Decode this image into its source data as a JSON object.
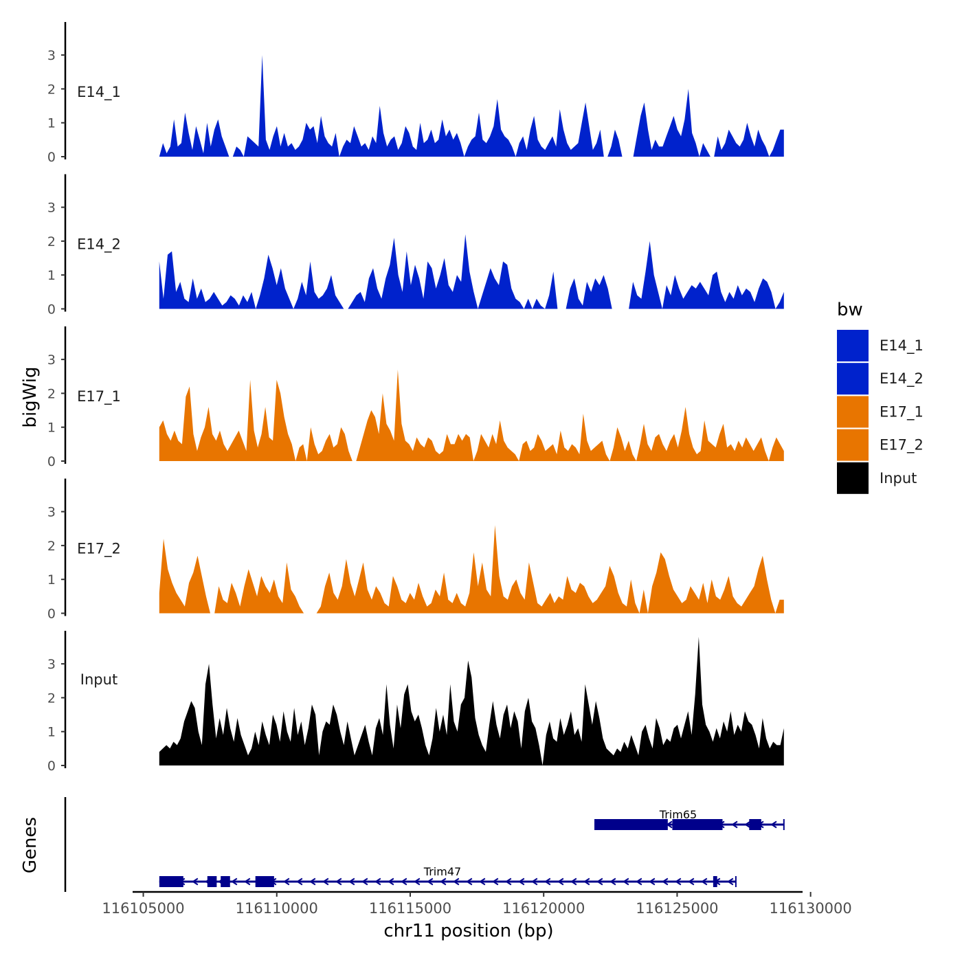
{
  "chart_data": {
    "type": "area",
    "ylabel": "bigWig",
    "xlabel": "chr11 position (bp)",
    "xlim": [
      116104600,
      116129700
    ],
    "x_ticks": [
      116105000,
      116110000,
      116115000,
      116120000,
      116125000,
      116130000
    ],
    "x_tick_labels": [
      "116105000",
      "116110000",
      "116115000",
      "116120000",
      "116125000",
      "116130000"
    ],
    "ylim": [
      0,
      4
    ],
    "y_ticks": [
      0,
      1,
      2,
      3
    ],
    "y_tick_labels": [
      "0",
      "1",
      "2",
      "3"
    ],
    "data_range": [
      116105600,
      116129000
    ],
    "tracks": [
      {
        "name": "E14_1",
        "color": "#0022CC",
        "values": [
          0,
          0.4,
          0.1,
          0.3,
          1.1,
          0.3,
          0.4,
          1.3,
          0.7,
          0.2,
          0.9,
          0.5,
          0.1,
          1.0,
          0.3,
          0.8,
          1.1,
          0.6,
          0.3,
          0,
          0,
          0.3,
          0.2,
          0,
          0.6,
          0.5,
          0.4,
          0.3,
          3.0,
          0.5,
          0.2,
          0.6,
          0.9,
          0.3,
          0.7,
          0.3,
          0.4,
          0.2,
          0.3,
          0.5,
          1.0,
          0.8,
          0.9,
          0.4,
          1.2,
          0.6,
          0.4,
          0.3,
          0.7,
          0,
          0.3,
          0.5,
          0.4,
          0.9,
          0.6,
          0.3,
          0.4,
          0.2,
          0.6,
          0.4,
          1.5,
          0.7,
          0.3,
          0.5,
          0.6,
          0.2,
          0.4,
          0.9,
          0.7,
          0.3,
          0.2,
          1.0,
          0.4,
          0.5,
          0.8,
          0.4,
          0.5,
          1.1,
          0.6,
          0.8,
          0.5,
          0.7,
          0.4,
          0,
          0.3,
          0.5,
          0.6,
          1.3,
          0.5,
          0.4,
          0.6,
          0.9,
          1.7,
          0.8,
          0.6,
          0.5,
          0.3,
          0,
          0.4,
          0.6,
          0.2,
          0.8,
          1.2,
          0.5,
          0.3,
          0.2,
          0.4,
          0.6,
          0.3,
          1.4,
          0.8,
          0.4,
          0.2,
          0.3,
          0.4,
          1.0,
          1.6,
          0.9,
          0.2,
          0.4,
          0.8,
          0,
          0,
          0.3,
          0.8,
          0.5,
          0,
          0,
          0,
          0,
          0.6,
          1.2,
          1.6,
          0.8,
          0.2,
          0.5,
          0.3,
          0.3,
          0.6,
          0.9,
          1.2,
          0.8,
          0.6,
          1.1,
          2.0,
          0.7,
          0.4,
          0,
          0.4,
          0.2,
          0,
          0,
          0.6,
          0.2,
          0.4,
          0.8,
          0.6,
          0.4,
          0.3,
          0.5,
          1.0,
          0.6,
          0.3,
          0.8,
          0.5,
          0.3,
          0,
          0.2,
          0.5,
          0.8,
          0.8
        ]
      },
      {
        "name": "E14_2",
        "color": "#0022CC",
        "values": [
          1.4,
          0.3,
          1.6,
          1.7,
          0.5,
          0.8,
          0.3,
          0.2,
          0.9,
          0.3,
          0.6,
          0.2,
          0.3,
          0.5,
          0.3,
          0.1,
          0.2,
          0.4,
          0.3,
          0.1,
          0.4,
          0.2,
          0.5,
          0,
          0.4,
          0.9,
          1.6,
          1.2,
          0.7,
          1.2,
          0.6,
          0.3,
          0,
          0.3,
          0.8,
          0.4,
          1.4,
          0.5,
          0.3,
          0.4,
          0.6,
          1.0,
          0.4,
          0.2,
          0,
          0,
          0.2,
          0.4,
          0.5,
          0.2,
          0.9,
          1.2,
          0.6,
          0.3,
          0.9,
          1.3,
          2.1,
          1.0,
          0.5,
          1.7,
          0.7,
          1.3,
          0.9,
          0.3,
          1.4,
          1.2,
          0.6,
          1.0,
          1.5,
          0.7,
          0.5,
          1.0,
          0.8,
          2.2,
          1.1,
          0.5,
          0,
          0.4,
          0.8,
          1.2,
          0.9,
          0.7,
          1.4,
          1.3,
          0.6,
          0.3,
          0.2,
          0,
          0.3,
          0,
          0.3,
          0.1,
          0,
          0.4,
          1.1,
          0,
          0,
          0,
          0.6,
          0.9,
          0.3,
          0.1,
          0.8,
          0.5,
          0.9,
          0.7,
          1.0,
          0.6,
          0,
          0,
          0,
          0,
          0,
          0.8,
          0.4,
          0.3,
          1.1,
          2.0,
          1.0,
          0.5,
          0,
          0.7,
          0.4,
          1.0,
          0.6,
          0.3,
          0.5,
          0.7,
          0.6,
          0.8,
          0.6,
          0.4,
          1.0,
          1.1,
          0.5,
          0.2,
          0.5,
          0.3,
          0.7,
          0.4,
          0.6,
          0.5,
          0.2,
          0.6,
          0.9,
          0.8,
          0.5,
          0,
          0.2,
          0.5
        ]
      },
      {
        "name": "E17_1",
        "color": "#E87500",
        "values": [
          1.0,
          1.2,
          0.8,
          0.6,
          0.9,
          0.6,
          0.5,
          1.9,
          2.2,
          0.8,
          0.3,
          0.7,
          1.0,
          1.6,
          0.8,
          0.6,
          0.9,
          0.5,
          0.3,
          0.5,
          0.7,
          0.9,
          0.6,
          0.3,
          2.4,
          0.9,
          0.4,
          0.8,
          1.6,
          0.7,
          0.6,
          2.4,
          2.0,
          1.3,
          0.8,
          0.5,
          0,
          0.4,
          0.5,
          0,
          1.0,
          0.5,
          0.2,
          0.3,
          0.6,
          0.8,
          0.4,
          0.5,
          1.0,
          0.8,
          0.3,
          0,
          0,
          0.4,
          0.8,
          1.2,
          1.5,
          1.3,
          0.8,
          2.0,
          1.1,
          0.9,
          0.6,
          2.7,
          1.1,
          0.6,
          0.5,
          0.3,
          0.7,
          0.5,
          0.4,
          0.7,
          0.6,
          0.3,
          0.2,
          0.3,
          0.8,
          0.5,
          0.5,
          0.8,
          0.6,
          0.8,
          0.7,
          0,
          0.3,
          0.8,
          0.6,
          0.4,
          0.8,
          0.5,
          1.2,
          0.6,
          0.4,
          0.3,
          0.2,
          0,
          0.5,
          0.6,
          0.3,
          0.4,
          0.8,
          0.6,
          0.3,
          0.4,
          0.5,
          0.2,
          0.9,
          0.4,
          0.3,
          0.5,
          0.4,
          0.2,
          1.4,
          0.6,
          0.3,
          0.4,
          0.5,
          0.6,
          0.2,
          0,
          0.4,
          1.0,
          0.7,
          0.3,
          0.6,
          0.2,
          0,
          0.5,
          1.1,
          0.5,
          0.3,
          0.7,
          0.8,
          0.5,
          0.3,
          0.6,
          0.8,
          0.4,
          0.9,
          1.6,
          0.8,
          0.4,
          0.2,
          0.3,
          1.2,
          0.6,
          0.5,
          0.4,
          0.8,
          1.1,
          0.4,
          0.5,
          0.3,
          0.6,
          0.4,
          0.7,
          0.5,
          0.3,
          0.5,
          0.7,
          0.3,
          0,
          0.4,
          0.7,
          0.5,
          0.3
        ]
      },
      {
        "name": "E17_2",
        "color": "#E87500",
        "values": [
          0.6,
          2.2,
          1.3,
          0.9,
          0.6,
          0.4,
          0.2,
          0.9,
          1.2,
          1.7,
          1.1,
          0.5,
          0,
          0,
          0.8,
          0.4,
          0.3,
          0.9,
          0.6,
          0.2,
          0.8,
          1.3,
          0.9,
          0.5,
          1.1,
          0.8,
          0.6,
          1.0,
          0.5,
          0.3,
          1.5,
          0.7,
          0.5,
          0.2,
          0,
          0,
          0,
          0,
          0.2,
          0.8,
          1.2,
          0.6,
          0.4,
          0.8,
          1.6,
          0.9,
          0.5,
          1.0,
          1.5,
          0.7,
          0.4,
          0.8,
          0.6,
          0.3,
          0.2,
          1.1,
          0.8,
          0.4,
          0.3,
          0.6,
          0.4,
          0.9,
          0.5,
          0.2,
          0.3,
          0.7,
          0.5,
          1.2,
          0.4,
          0.3,
          0.6,
          0.3,
          0.2,
          0.6,
          1.8,
          0.8,
          1.5,
          0.7,
          0.5,
          2.6,
          1.1,
          0.5,
          0.4,
          0.8,
          1.0,
          0.6,
          0.4,
          1.5,
          0.9,
          0.3,
          0.2,
          0.4,
          0.6,
          0.3,
          0.5,
          0.4,
          1.1,
          0.7,
          0.6,
          0.9,
          0.8,
          0.5,
          0.3,
          0.4,
          0.6,
          0.8,
          1.4,
          1.1,
          0.6,
          0.3,
          0.2,
          1.0,
          0.3,
          0,
          0.7,
          0,
          0.8,
          1.2,
          1.8,
          1.6,
          1.1,
          0.7,
          0.5,
          0.3,
          0.4,
          0.8,
          0.6,
          0.4,
          0.9,
          0.3,
          1.0,
          0.5,
          0.4,
          0.7,
          1.1,
          0.5,
          0.3,
          0.2,
          0.4,
          0.6,
          0.8,
          1.3,
          1.7,
          1.0,
          0.4,
          0,
          0.4,
          0.4
        ]
      },
      {
        "name": "Input",
        "color": "#000000",
        "values": [
          0.4,
          0.5,
          0.6,
          0.5,
          0.7,
          0.6,
          0.8,
          1.3,
          1.6,
          1.9,
          1.7,
          1.0,
          0.6,
          2.4,
          3.0,
          1.8,
          0.8,
          1.4,
          0.9,
          1.7,
          1.1,
          0.7,
          1.4,
          0.9,
          0.6,
          0.3,
          0.5,
          1.0,
          0.6,
          1.3,
          0.9,
          0.6,
          1.5,
          1.2,
          0.7,
          1.6,
          1.0,
          0.7,
          1.7,
          0.9,
          1.3,
          0.6,
          1.1,
          1.8,
          1.5,
          0.3,
          1.0,
          1.3,
          1.2,
          1.8,
          1.5,
          1.0,
          0.6,
          1.3,
          0.8,
          0.3,
          0.6,
          0.9,
          1.2,
          0.7,
          0.3,
          1.1,
          1.4,
          0.9,
          2.4,
          1.2,
          0.5,
          1.8,
          1.1,
          2.1,
          2.4,
          1.6,
          1.3,
          1.5,
          1.1,
          0.6,
          0.3,
          0.8,
          1.7,
          1.0,
          1.5,
          0.9,
          2.4,
          1.3,
          1.0,
          1.8,
          2.0,
          3.1,
          2.6,
          1.4,
          0.9,
          0.6,
          0.4,
          1.2,
          1.9,
          1.2,
          0.8,
          1.5,
          1.8,
          1.1,
          1.6,
          1.3,
          0.5,
          1.6,
          2.0,
          1.3,
          1.1,
          0.6,
          0,
          0.9,
          1.3,
          0.8,
          0.7,
          1.4,
          0.9,
          1.2,
          1.6,
          0.9,
          1.1,
          0.7,
          2.4,
          1.8,
          1.2,
          1.9,
          1.4,
          0.8,
          0.5,
          0.4,
          0.3,
          0.5,
          0.4,
          0.7,
          0.5,
          0.9,
          0.6,
          0.3,
          1.0,
          1.2,
          0.8,
          0.5,
          1.4,
          1.1,
          0.6,
          0.8,
          0.7,
          1.1,
          1.2,
          0.8,
          1.2,
          1.6,
          0.9,
          2.1,
          3.8,
          1.8,
          1.2,
          1.0,
          0.7,
          1.1,
          0.8,
          1.3,
          1.0,
          1.6,
          0.9,
          1.2,
          1.0,
          1.6,
          1.3,
          1.2,
          0.9,
          0.5,
          1.4,
          0.8,
          0.5,
          0.7,
          0.6,
          0.6,
          1.1
        ]
      }
    ],
    "legend": {
      "title": "bw",
      "position": "right",
      "entries": [
        {
          "label": "E14_1",
          "color": "#0022CC"
        },
        {
          "label": "E14_2",
          "color": "#0022CC"
        },
        {
          "label": "E17_1",
          "color": "#E87500"
        },
        {
          "label": "E17_2",
          "color": "#E87500"
        },
        {
          "label": "Input",
          "color": "#000000"
        }
      ]
    },
    "genes_panel": {
      "label": "Genes",
      "color": "#00008B",
      "genes": [
        {
          "name": "Trim65",
          "strand": "-",
          "start": 116121900,
          "end": 116129000,
          "exons": [
            [
              116121900,
              116124650
            ],
            [
              116124820,
              116126700
            ],
            [
              116127700,
              116128150
            ]
          ]
        },
        {
          "name": "Trim47",
          "strand": "-",
          "start": 116105600,
          "end": 116127200,
          "exons": [
            [
              116105600,
              116106500
            ],
            [
              116107400,
              116107750
            ],
            [
              116107900,
              116108250
            ],
            [
              116109200,
              116109900
            ],
            [
              116126350,
              116126500
            ]
          ]
        }
      ]
    }
  }
}
